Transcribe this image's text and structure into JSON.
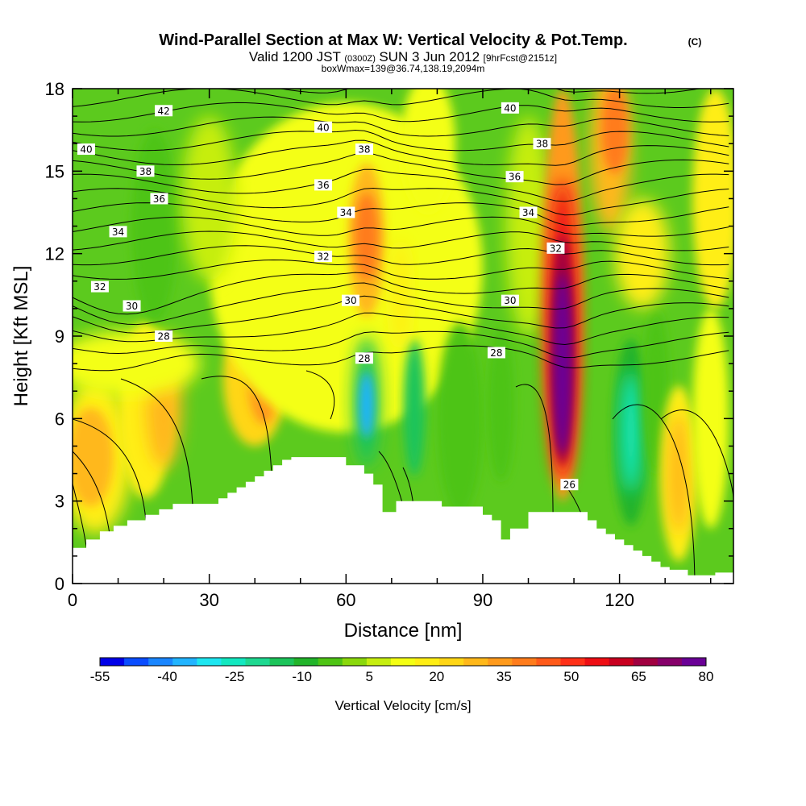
{
  "chart_data": {
    "type": "heatmap",
    "title": "Wind-Parallel Section at Max W: Vertical Velocity & Pot.Temp.",
    "title_mark": "(C)",
    "subtitle": {
      "valid": "Valid 1200 JST",
      "zulu": "(0300Z)",
      "date": "SUN 3 Jun 2012",
      "forecast": "[9hrFcst@2151z]"
    },
    "box_line": "boxWmax=139@36.74,138.19,2094m",
    "xlabel": "Distance [nm]",
    "ylabel": "Height [Kft MSL]",
    "xlim": [
      0,
      145
    ],
    "ylim": [
      0,
      18
    ],
    "x_ticks": [
      "0",
      "30",
      "60",
      "90",
      "120"
    ],
    "y_ticks": [
      "0",
      "3",
      "6",
      "9",
      "12",
      "15",
      "18"
    ],
    "grid": false,
    "colorbar": {
      "label": "Vertical Velocity [cm/s]",
      "tick_labels": [
        "-55",
        "-40",
        "-25",
        "-10",
        "5",
        "20",
        "35",
        "50",
        "65",
        "80"
      ],
      "colors": [
        "#0000e8",
        "#0a4dff",
        "#1a86ff",
        "#22b4ff",
        "#1ee6f0",
        "#12e8c0",
        "#1ed890",
        "#1cc45a",
        "#22b42a",
        "#4ec414",
        "#8ad80c",
        "#c6ee10",
        "#f4ff14",
        "#ffee14",
        "#ffd616",
        "#ffb81a",
        "#ff9a1c",
        "#ff7c1c",
        "#ff5a1a",
        "#ff3018",
        "#ee0e14",
        "#c80020",
        "#a00040",
        "#86006a",
        "#6a0096"
      ]
    },
    "regions": [
      {
        "name": "yellow-left",
        "x": 4,
        "y": 4.6,
        "w_cm_s": 22
      },
      {
        "name": "yellow-left-2",
        "x": 17,
        "y": 6.5,
        "w_cm_s": 20
      },
      {
        "name": "yellow-mid",
        "x": 41,
        "y": 7.5,
        "w_cm_s": 25
      },
      {
        "name": "updraft-upper",
        "x": 64.5,
        "y": 12.5,
        "w_cm_s": 35
      },
      {
        "name": "downdraft-left",
        "x": 64.5,
        "y": 6.5,
        "w_cm_s": -45
      },
      {
        "name": "downdraft-small",
        "x": 75,
        "y": 6.5,
        "w_cm_s": -25
      },
      {
        "name": "max-updraft",
        "x": 107.5,
        "y": 8,
        "w_cm_s": 80
      },
      {
        "name": "updraft-top",
        "x": 118,
        "y": 16,
        "w_cm_s": 30
      },
      {
        "name": "downdraft-right",
        "x": 122.5,
        "y": 5.5,
        "w_cm_s": -35
      },
      {
        "name": "yellow-right",
        "x": 133,
        "y": 4,
        "w_cm_s": 22
      },
      {
        "name": "downdraft-upper-left",
        "x": 18,
        "y": 13,
        "w_cm_s": -12
      }
    ],
    "terrain": {
      "x": [
        0,
        3,
        3,
        6,
        6,
        9,
        9,
        12,
        12,
        16,
        16,
        19,
        19,
        22,
        22,
        32,
        32,
        34,
        34,
        36,
        36,
        38,
        38,
        40,
        40,
        42,
        42,
        44,
        44,
        46,
        46,
        48,
        48,
        60,
        60,
        64,
        64,
        66,
        66,
        68,
        68,
        71,
        71,
        81,
        81,
        90,
        90,
        92,
        92,
        94,
        94,
        96,
        96,
        100,
        100,
        103,
        103,
        113,
        113,
        115,
        115,
        117,
        117,
        119,
        119,
        121,
        121,
        123,
        123,
        125,
        125,
        127,
        127,
        129,
        129,
        131,
        131,
        135,
        135,
        141,
        141,
        145
      ],
      "h": [
        1.3,
        1.3,
        1.6,
        1.6,
        1.9,
        1.9,
        2.1,
        2.1,
        2.3,
        2.3,
        2.5,
        2.5,
        2.7,
        2.7,
        2.9,
        2.9,
        3.1,
        3.1,
        3.3,
        3.3,
        3.5,
        3.5,
        3.7,
        3.7,
        3.9,
        3.9,
        4.1,
        4.1,
        4.3,
        4.3,
        4.5,
        4.5,
        4.6,
        4.6,
        4.3,
        4.3,
        4.0,
        4.0,
        3.6,
        3.6,
        2.6,
        2.6,
        3.0,
        3.0,
        2.8,
        2.8,
        2.5,
        2.5,
        2.3,
        2.3,
        1.6,
        1.6,
        2.0,
        2.0,
        2.6,
        2.6,
        2.6,
        2.6,
        2.3,
        2.3,
        2.0,
        2.0,
        1.8,
        1.8,
        1.6,
        1.6,
        1.4,
        1.4,
        1.2,
        1.2,
        1.0,
        1.0,
        0.8,
        0.8,
        0.6,
        0.6,
        0.5,
        0.5,
        0.3,
        0.3,
        0.4,
        0.4
      ]
    },
    "isentrope_labels": [
      {
        "text": "42",
        "x": 20,
        "y": 17.2
      },
      {
        "text": "40",
        "x": 55,
        "y": 16.6
      },
      {
        "text": "40",
        "x": 96,
        "y": 17.3
      },
      {
        "text": "40",
        "x": 3,
        "y": 15.8
      },
      {
        "text": "38",
        "x": 64,
        "y": 15.8
      },
      {
        "text": "38",
        "x": 103,
        "y": 16.0
      },
      {
        "text": "38",
        "x": 16,
        "y": 15.0
      },
      {
        "text": "36",
        "x": 55,
        "y": 14.5
      },
      {
        "text": "36",
        "x": 97,
        "y": 14.8
      },
      {
        "text": "36",
        "x": 19,
        "y": 14.0
      },
      {
        "text": "34",
        "x": 60,
        "y": 13.5
      },
      {
        "text": "34",
        "x": 100,
        "y": 13.5
      },
      {
        "text": "34",
        "x": 10,
        "y": 12.8
      },
      {
        "text": "32",
        "x": 55,
        "y": 11.9
      },
      {
        "text": "32",
        "x": 106,
        "y": 12.2
      },
      {
        "text": "32",
        "x": 6,
        "y": 10.8
      },
      {
        "text": "30",
        "x": 61,
        "y": 10.3
      },
      {
        "text": "30",
        "x": 96,
        "y": 10.3
      },
      {
        "text": "30",
        "x": 13,
        "y": 10.1
      },
      {
        "text": "28",
        "x": 20,
        "y": 9.0
      },
      {
        "text": "28",
        "x": 93,
        "y": 8.4
      },
      {
        "text": "28",
        "x": 64,
        "y": 8.2
      },
      {
        "text": "26",
        "x": 109,
        "y": 3.6
      }
    ]
  }
}
